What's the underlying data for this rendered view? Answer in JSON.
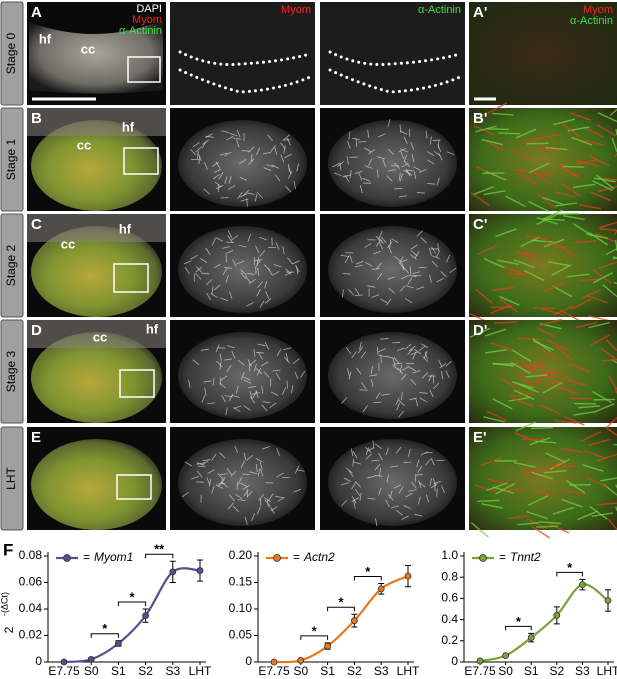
{
  "figure": {
    "merge_channels": [
      "DAPI",
      "Myom",
      "α-Actinin"
    ],
    "myom_channel": "Myom",
    "actinin_channel": "α-Actinin",
    "zoom_channels": [
      "Myom",
      "α-Actinin"
    ],
    "panel_f": "F",
    "rows": [
      {
        "label": "Stage 0",
        "letter": "A",
        "zoom_letter": "A'",
        "labels": [
          "hf",
          "cc"
        ]
      },
      {
        "label": "Stage 1",
        "letter": "B",
        "zoom_letter": "B'",
        "labels": [
          "cc",
          "hf"
        ]
      },
      {
        "label": "Stage 2",
        "letter": "C",
        "zoom_letter": "C'",
        "labels": [
          "cc",
          "hf"
        ]
      },
      {
        "label": "Stage 3",
        "letter": "D",
        "zoom_letter": "D'",
        "labels": [
          "cc",
          "hf"
        ]
      },
      {
        "label": "LHT",
        "letter": "E",
        "zoom_letter": "E'",
        "labels": []
      }
    ]
  },
  "chart_data": [
    {
      "type": "line",
      "categories": [
        "E7.75",
        "S0",
        "S1",
        "S2",
        "S3",
        "LHT"
      ],
      "ylabel": "2",
      "ylabel_superscript": "-(ΔCt)",
      "ylim": [
        0,
        0.08
      ],
      "yticks": [
        0,
        0.02,
        0.04,
        0.06,
        0.08
      ],
      "legend_sign": "=",
      "legend": "upper left",
      "series": [
        {
          "name": "Myom1",
          "color": "#5e4b8f",
          "values": [
            0,
            0.002,
            0.014,
            0.035,
            0.068,
            0.069
          ],
          "errors": [
            0.001,
            0.001,
            0.002,
            0.005,
            0.008,
            0.008
          ]
        }
      ],
      "annotations": [
        {
          "text": "*",
          "between": [
            "S0",
            "S1"
          ]
        },
        {
          "text": "*",
          "between": [
            "S1",
            "S2"
          ]
        },
        {
          "text": "**",
          "between": [
            "S2",
            "S3"
          ]
        }
      ]
    },
    {
      "type": "line",
      "categories": [
        "E7.75",
        "S0",
        "S1",
        "S2",
        "S3",
        "LHT"
      ],
      "ylim": [
        0,
        0.2
      ],
      "yticks": [
        0,
        0.05,
        {
          "value": 0.1,
          "label": "0.10"
        },
        0.15,
        {
          "value": 0.2,
          "label": "0.20"
        }
      ],
      "legend_sign": "=",
      "legend": "upper left",
      "series": [
        {
          "name": "Actn2",
          "color": "#e8781e",
          "values": [
            0,
            0.003,
            0.03,
            0.078,
            0.138,
            0.162
          ],
          "errors": [
            0.001,
            0.002,
            0.006,
            0.012,
            0.01,
            0.02
          ]
        }
      ],
      "annotations": [
        {
          "text": "*",
          "between": [
            "S0",
            "S1"
          ]
        },
        {
          "text": "*",
          "between": [
            "S1",
            "S2"
          ]
        },
        {
          "text": "*",
          "between": [
            "S2",
            "S3"
          ]
        }
      ]
    },
    {
      "type": "line",
      "categories": [
        "E7.75",
        "S0",
        "S1",
        "S2",
        "S3",
        "LHT"
      ],
      "ylim": [
        0,
        1
      ],
      "yticks": [
        0,
        0.2,
        0.4,
        0.6,
        0.8,
        {
          "value": 1,
          "label": "1.0"
        }
      ],
      "legend_sign": "=",
      "legend": "upper left",
      "series": [
        {
          "name": "Tnnt2",
          "color": "#7ba13a",
          "values": [
            0.01,
            0.06,
            0.23,
            0.44,
            0.73,
            0.58
          ],
          "errors": [
            0.005,
            0.01,
            0.04,
            0.08,
            0.05,
            0.1
          ]
        }
      ],
      "annotations": [
        {
          "text": "*",
          "between": [
            "S0",
            "S1"
          ]
        },
        {
          "text": "*",
          "between": [
            "S2",
            "S3"
          ]
        }
      ]
    }
  ]
}
